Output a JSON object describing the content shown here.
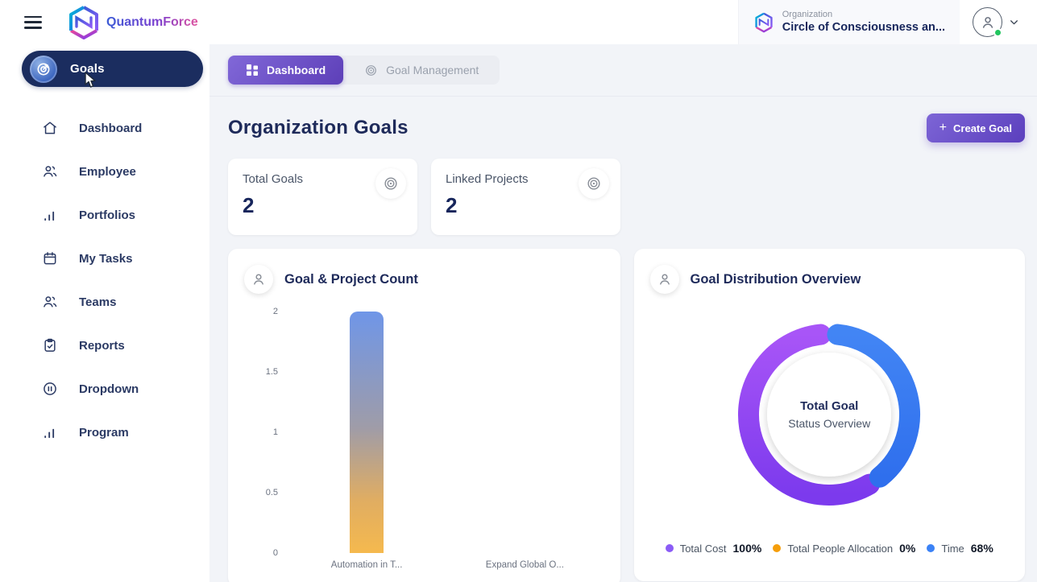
{
  "brand": {
    "name": "QuantumForce"
  },
  "topbar": {
    "organization": {
      "label": "Organization",
      "name": "Circle of Consciousness an..."
    }
  },
  "sidebar": {
    "active_item": {
      "label": "Goals",
      "icon": "goal-target-icon"
    },
    "items": [
      {
        "label": "Dashboard",
        "icon": "home-icon"
      },
      {
        "label": "Employee",
        "icon": "people-icon"
      },
      {
        "label": "Portfolios",
        "icon": "bar-chart-icon"
      },
      {
        "label": "My Tasks",
        "icon": "calendar-icon"
      },
      {
        "label": "Teams",
        "icon": "people-icon"
      },
      {
        "label": "Reports",
        "icon": "clipboard-check-icon"
      },
      {
        "label": "Dropdown",
        "icon": "pause-circle-icon"
      },
      {
        "label": "Program",
        "icon": "bar-chart-icon"
      }
    ]
  },
  "tabs": [
    {
      "label": "Dashboard",
      "icon": "grid-icon",
      "active": true
    },
    {
      "label": "Goal Management",
      "icon": "target-icon",
      "active": false
    }
  ],
  "page": {
    "title": "Organization Goals",
    "create_goal_button": "Create Goal"
  },
  "stat_cards": [
    {
      "label": "Total Goals",
      "value": "2",
      "icon": "target-icon"
    },
    {
      "label": "Linked Projects",
      "value": "2",
      "icon": "target-icon"
    }
  ],
  "colors": {
    "accent_purple": "#6c4ec9",
    "active_nav_navy": "#1b2d5f",
    "title_navy": "#1e2a5a",
    "status_green": "#22c55e",
    "bar_gradient_top": "#6f96e8",
    "bar_gradient_bottom": "#f5b94e",
    "donut_purple": "#8b5cf6",
    "donut_blue": "#3b82f6",
    "legend_orange": "#f59e0b"
  },
  "chart_data": [
    {
      "type": "bar",
      "title": "Goal & Project Count",
      "categories": [
        "Automation in T...",
        "Expand Global O..."
      ],
      "values": [
        2,
        0
      ],
      "yticks": [
        "2",
        "1.5",
        "1",
        "0.5",
        "0"
      ],
      "ylim": [
        0,
        2
      ],
      "grid": false,
      "xlabel": "",
      "ylabel": ""
    },
    {
      "type": "donut",
      "title": "Goal Distribution Overview",
      "center_title": "Total Goal",
      "center_subtitle": "Status Overview",
      "legend_position": "bottom",
      "series": [
        {
          "name": "Total Cost",
          "value": 100,
          "value_label": "100%",
          "color": "#8b5cf6"
        },
        {
          "name": "Total People Allocation",
          "value": 0,
          "value_label": "0%",
          "color": "#f59e0b"
        },
        {
          "name": "Time",
          "value": 68,
          "value_label": "68%",
          "color": "#3b82f6"
        }
      ]
    }
  ]
}
